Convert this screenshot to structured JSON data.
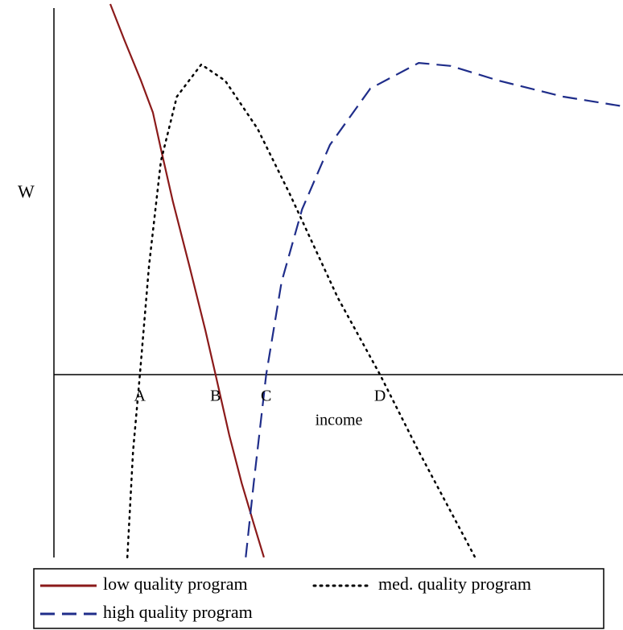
{
  "chart_data": {
    "type": "line",
    "y_label": "W",
    "x_label": "income",
    "xlim": [
      0,
      100
    ],
    "ylim": [
      -50,
      100
    ],
    "series": [
      {
        "name": "low quality program",
        "color": "#8b1a1a",
        "style": "solid",
        "x": [
          9.9,
          12.4,
          15.3,
          17.4,
          18.8,
          20.9,
          23.8,
          26.6,
          28.4,
          30.8,
          33.0,
          35.1,
          36.9
        ],
        "values": [
          100,
          90.2,
          79.3,
          70.7,
          60.9,
          46.7,
          29.3,
          12.0,
          0,
          -16.3,
          -29.3,
          -40.2,
          -49.3
        ]
      },
      {
        "name": "med. quality program",
        "color": "#000000",
        "style": "dotted",
        "x": [
          12.9,
          13.9,
          15.1,
          16.7,
          18.8,
          21.6,
          25.9,
          30.1,
          35.8,
          41.4,
          49.9,
          57.3,
          64.1,
          74.0
        ],
        "values": [
          -49.3,
          -20.7,
          0,
          29.3,
          57.6,
          75,
          83.7,
          79.3,
          66.3,
          48.9,
          20.7,
          0,
          -20.7,
          -49.3
        ]
      },
      {
        "name": "high quality program",
        "color": "#1f2d8a",
        "style": "dashed",
        "x": [
          33.7,
          35.1,
          37.3,
          40.0,
          43.6,
          48.5,
          55.6,
          64.1,
          69.7,
          78.2,
          89.5,
          100
        ],
        "values": [
          -49.3,
          -29.3,
          0,
          25,
          44.6,
          62,
          77.2,
          84.1,
          83.3,
          79.3,
          75,
          72.4
        ]
      }
    ],
    "point_labels": [
      {
        "label": "A",
        "x": 15.1
      },
      {
        "label": "B",
        "x": 28.4
      },
      {
        "label": "C",
        "x": 37.3
      },
      {
        "label": "D",
        "x": 57.3
      }
    ]
  }
}
